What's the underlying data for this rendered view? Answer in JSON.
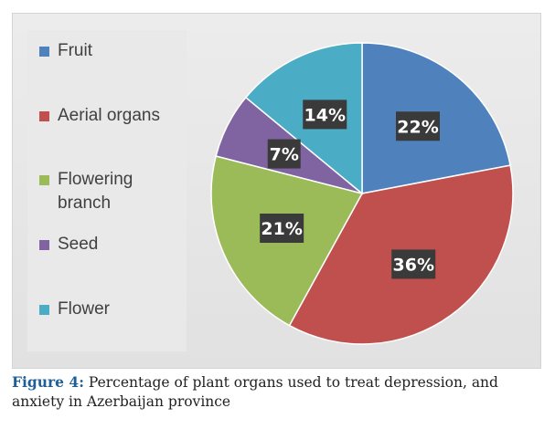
{
  "chart_data": {
    "type": "pie",
    "categories": [
      "Fruit",
      "Aerial organs",
      "Flowering branch",
      "Seed",
      "Flower"
    ],
    "values": [
      22,
      36,
      21,
      7,
      14
    ],
    "data_labels": [
      "22%",
      "36%",
      "21%",
      "7%",
      "14%"
    ],
    "colors": [
      "#4f81bd",
      "#c0504d",
      "#9bbb59",
      "#8064a2",
      "#4bacc6"
    ],
    "legend_position": "left",
    "start_angle_deg": 0,
    "direction": "clockwise"
  },
  "legend": {
    "items": [
      {
        "label": "Fruit",
        "color": "#4f81bd"
      },
      {
        "label": "Aerial organs",
        "color": "#c0504d"
      },
      {
        "label": "Flowering branch",
        "color": "#9bbb59"
      },
      {
        "label": "Seed",
        "color": "#8064a2"
      },
      {
        "label": "Flower",
        "color": "#4bacc6"
      }
    ]
  },
  "caption": {
    "figure_label": "Figure 4:",
    "text": " Percentage of plant organs used to treat depression, and anxiety in Azerbaijan province"
  }
}
